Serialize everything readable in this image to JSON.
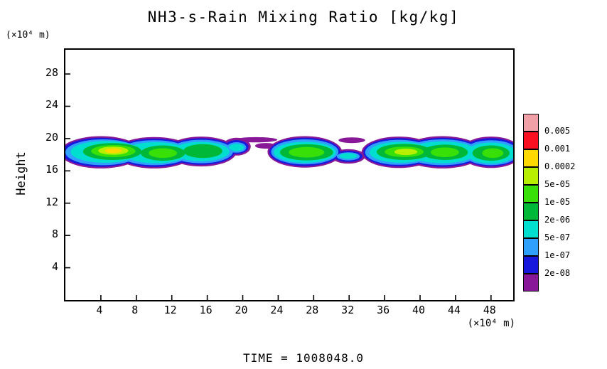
{
  "title": "NH3-s-Rain Mixing Ratio [kg/kg]",
  "time_label": "TIME = 1008048.0",
  "y_axis": {
    "label": "Height",
    "unit": "(×10⁴ m)",
    "ticks": [
      4,
      8,
      12,
      16,
      20,
      24,
      28
    ]
  },
  "x_axis": {
    "unit": "(×10⁴ m)",
    "ticks": [
      4,
      8,
      12,
      16,
      20,
      24,
      28,
      32,
      36,
      40,
      44,
      48
    ]
  },
  "legend": {
    "labels": [
      "0.005",
      "0.001",
      "0.0002",
      "5e-05",
      "1e-05",
      "2e-06",
      "5e-07",
      "1e-07",
      "2e-08"
    ],
    "colors": [
      "#f2a0a8",
      "#fa1020",
      "#ffd800",
      "#b8ee00",
      "#38e008",
      "#00b838",
      "#00ded0",
      "#30a0ff",
      "#1818dd",
      "#881898"
    ]
  },
  "chart_data": {
    "type": "heatmap",
    "title": "NH3-s-Rain Mixing Ratio [kg/kg]",
    "units": "kg/kg",
    "ylabel": "Height",
    "ylabel_unit": "(×10⁴ m)",
    "xlabel_unit": "(×10⁴ m)",
    "x_range": [
      0,
      50.5
    ],
    "y_range": [
      0,
      31
    ],
    "x_ticks": [
      4,
      8,
      12,
      16,
      20,
      24,
      28,
      32,
      36,
      40,
      44,
      48
    ],
    "y_ticks": [
      4,
      8,
      12,
      16,
      20,
      24,
      28
    ],
    "contour_levels": [
      "2e-08",
      "1e-07",
      "5e-07",
      "2e-06",
      "1e-05",
      "5e-05",
      "0.0002",
      "0.001",
      "0.005"
    ],
    "band": {
      "description": "Horizontal mixing-ratio band spanning the full x domain, concentrated between heights 16.3 and 20.3 (×10⁴ m); outer fringes at <2e-08 kg/kg (purple), cores mostly 2e-06 to 5e-05 kg/kg (green), local maximum 0.0002-0.001 kg/kg (yellow) near x≈5.5.",
      "x_extent": [
        0,
        50.5
      ],
      "height_extent": [
        16.3,
        20.3
      ],
      "peak": {
        "x": 5.4,
        "height": 18.5,
        "level": "0.0002 to 0.001"
      },
      "thin_gaps_x": [
        [
          19.7,
          23.5
        ],
        [
          30.5,
          33.5
        ]
      ]
    },
    "layers": [
      {
        "level": "< 2e-08",
        "color": "#881898",
        "blobs": [
          {
            "cx": 4.0,
            "cy": 18.3,
            "rx": 4.6,
            "ry": 2.0
          },
          {
            "cx": 10.0,
            "cy": 18.25,
            "rx": 4.5,
            "ry": 1.95
          },
          {
            "cx": 15.3,
            "cy": 18.4,
            "rx": 4.0,
            "ry": 1.85
          },
          {
            "cx": 19.3,
            "cy": 19.0,
            "rx": 1.6,
            "ry": 1.1
          },
          {
            "cx": 21.5,
            "cy": 19.85,
            "rx": 2.4,
            "ry": 0.33
          },
          {
            "cx": 22.6,
            "cy": 19.1,
            "rx": 1.2,
            "ry": 0.35
          },
          {
            "cx": 27.0,
            "cy": 18.35,
            "rx": 4.2,
            "ry": 1.95
          },
          {
            "cx": 31.9,
            "cy": 17.8,
            "rx": 1.9,
            "ry": 0.9
          },
          {
            "cx": 32.3,
            "cy": 19.8,
            "rx": 1.5,
            "ry": 0.35
          },
          {
            "cx": 37.6,
            "cy": 18.3,
            "rx": 4.2,
            "ry": 1.95
          },
          {
            "cx": 42.5,
            "cy": 18.3,
            "rx": 4.6,
            "ry": 2.0
          },
          {
            "cx": 48.0,
            "cy": 18.3,
            "rx": 3.5,
            "ry": 1.95
          }
        ]
      },
      {
        "level": "2e-08 to 1e-07",
        "color": "#1818dd",
        "blobs": [
          {
            "cx": 4.0,
            "cy": 18.3,
            "rx": 4.4,
            "ry": 1.8
          },
          {
            "cx": 10.0,
            "cy": 18.25,
            "rx": 4.3,
            "ry": 1.75
          },
          {
            "cx": 15.3,
            "cy": 18.4,
            "rx": 3.8,
            "ry": 1.65
          },
          {
            "cx": 19.3,
            "cy": 18.95,
            "rx": 1.35,
            "ry": 0.85
          },
          {
            "cx": 27.0,
            "cy": 18.35,
            "rx": 4.0,
            "ry": 1.75
          },
          {
            "cx": 31.9,
            "cy": 17.8,
            "rx": 1.6,
            "ry": 0.7
          },
          {
            "cx": 37.6,
            "cy": 18.3,
            "rx": 4.0,
            "ry": 1.75
          },
          {
            "cx": 42.5,
            "cy": 18.3,
            "rx": 4.4,
            "ry": 1.8
          },
          {
            "cx": 48.0,
            "cy": 18.3,
            "rx": 3.3,
            "ry": 1.75
          }
        ]
      },
      {
        "level": "1e-07 to 5e-07",
        "color": "#30a0ff",
        "blobs": [
          {
            "cx": 4.2,
            "cy": 18.3,
            "rx": 4.2,
            "ry": 1.6
          },
          {
            "cx": 10.0,
            "cy": 18.25,
            "rx": 4.1,
            "ry": 1.55
          },
          {
            "cx": 15.3,
            "cy": 18.4,
            "rx": 3.6,
            "ry": 1.45
          },
          {
            "cx": 19.3,
            "cy": 18.9,
            "rx": 1.1,
            "ry": 0.65
          },
          {
            "cx": 27.0,
            "cy": 18.35,
            "rx": 3.8,
            "ry": 1.55
          },
          {
            "cx": 31.9,
            "cy": 17.8,
            "rx": 1.3,
            "ry": 0.5
          },
          {
            "cx": 37.6,
            "cy": 18.3,
            "rx": 3.8,
            "ry": 1.55
          },
          {
            "cx": 42.5,
            "cy": 18.3,
            "rx": 4.2,
            "ry": 1.6
          },
          {
            "cx": 48.0,
            "cy": 18.25,
            "rx": 3.1,
            "ry": 1.55
          }
        ]
      },
      {
        "level": "5e-07 to 2e-06",
        "color": "#00ded0",
        "blobs": [
          {
            "cx": 4.5,
            "cy": 18.35,
            "rx": 3.9,
            "ry": 1.35
          },
          {
            "cx": 10.2,
            "cy": 18.25,
            "rx": 3.7,
            "ry": 1.3
          },
          {
            "cx": 15.3,
            "cy": 18.4,
            "rx": 3.2,
            "ry": 1.2
          },
          {
            "cx": 19.3,
            "cy": 18.9,
            "rx": 0.85,
            "ry": 0.45
          },
          {
            "cx": 27.0,
            "cy": 18.3,
            "rx": 3.5,
            "ry": 1.3
          },
          {
            "cx": 31.9,
            "cy": 17.85,
            "rx": 1.0,
            "ry": 0.35
          },
          {
            "cx": 37.8,
            "cy": 18.3,
            "rx": 3.5,
            "ry": 1.3
          },
          {
            "cx": 42.5,
            "cy": 18.3,
            "rx": 3.9,
            "ry": 1.35
          },
          {
            "cx": 48.0,
            "cy": 18.2,
            "rx": 2.8,
            "ry": 1.3
          }
        ]
      },
      {
        "level": "2e-06 to 1e-05",
        "color": "#00b838",
        "blobs": [
          {
            "cx": 5.3,
            "cy": 18.4,
            "rx": 3.3,
            "ry": 1.05
          },
          {
            "cx": 11.0,
            "cy": 18.2,
            "rx": 2.5,
            "ry": 0.95
          },
          {
            "cx": 15.5,
            "cy": 18.45,
            "rx": 2.2,
            "ry": 0.85
          },
          {
            "cx": 27.2,
            "cy": 18.3,
            "rx": 3.0,
            "ry": 1.0
          },
          {
            "cx": 38.2,
            "cy": 18.35,
            "rx": 3.1,
            "ry": 1.0
          },
          {
            "cx": 42.8,
            "cy": 18.3,
            "rx": 2.6,
            "ry": 0.95
          },
          {
            "cx": 48.0,
            "cy": 18.2,
            "rx": 2.1,
            "ry": 0.95
          }
        ]
      },
      {
        "level": "1e-05 to 5e-05",
        "color": "#38e008",
        "blobs": [
          {
            "cx": 5.4,
            "cy": 18.45,
            "rx": 2.5,
            "ry": 0.75
          },
          {
            "cx": 11.0,
            "cy": 18.2,
            "rx": 1.6,
            "ry": 0.6
          },
          {
            "cx": 27.2,
            "cy": 18.3,
            "rx": 2.0,
            "ry": 0.65
          },
          {
            "cx": 38.2,
            "cy": 18.35,
            "rx": 2.2,
            "ry": 0.65
          },
          {
            "cx": 42.8,
            "cy": 18.3,
            "rx": 1.6,
            "ry": 0.6
          },
          {
            "cx": 48.2,
            "cy": 18.2,
            "rx": 1.2,
            "ry": 0.6
          }
        ]
      },
      {
        "level": "5e-05 to 0.0002",
        "color": "#b8ee00",
        "blobs": [
          {
            "cx": 5.4,
            "cy": 18.5,
            "rx": 1.7,
            "ry": 0.5
          },
          {
            "cx": 38.4,
            "cy": 18.35,
            "rx": 1.3,
            "ry": 0.4
          }
        ]
      },
      {
        "level": "0.0002 to 0.001",
        "color": "#ffd800",
        "blobs": [
          {
            "cx": 5.4,
            "cy": 18.5,
            "rx": 0.95,
            "ry": 0.3
          }
        ]
      }
    ]
  }
}
